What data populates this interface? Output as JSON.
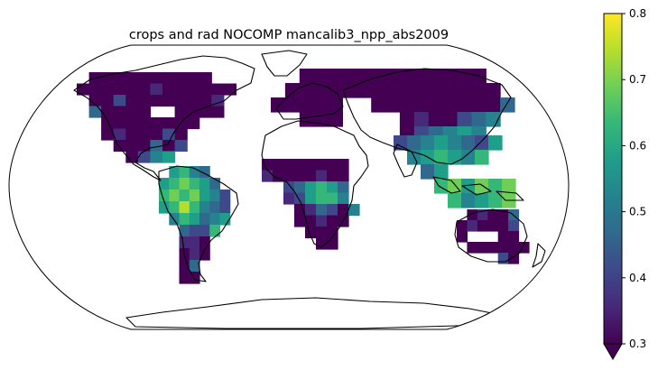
{
  "title": "crops and rad NOCOMP mancalib3_npp_abs2009",
  "projection": "Robinson",
  "colormap": "viridis",
  "colorbar": {
    "vmin": 0.3,
    "vmax": 0.8,
    "ticks": [
      "0.3",
      "0.4",
      "0.5",
      "0.6",
      "0.7",
      "0.8"
    ],
    "extend": "min",
    "orientation": "vertical"
  },
  "colors": {
    "viridis": [
      "#440154",
      "#482878",
      "#3e4989",
      "#31688e",
      "#26828e",
      "#1f9e89",
      "#35b779",
      "#6ece58",
      "#b5de2b",
      "#fde725"
    ],
    "coastline": "#000000",
    "background": "#ffffff"
  }
}
